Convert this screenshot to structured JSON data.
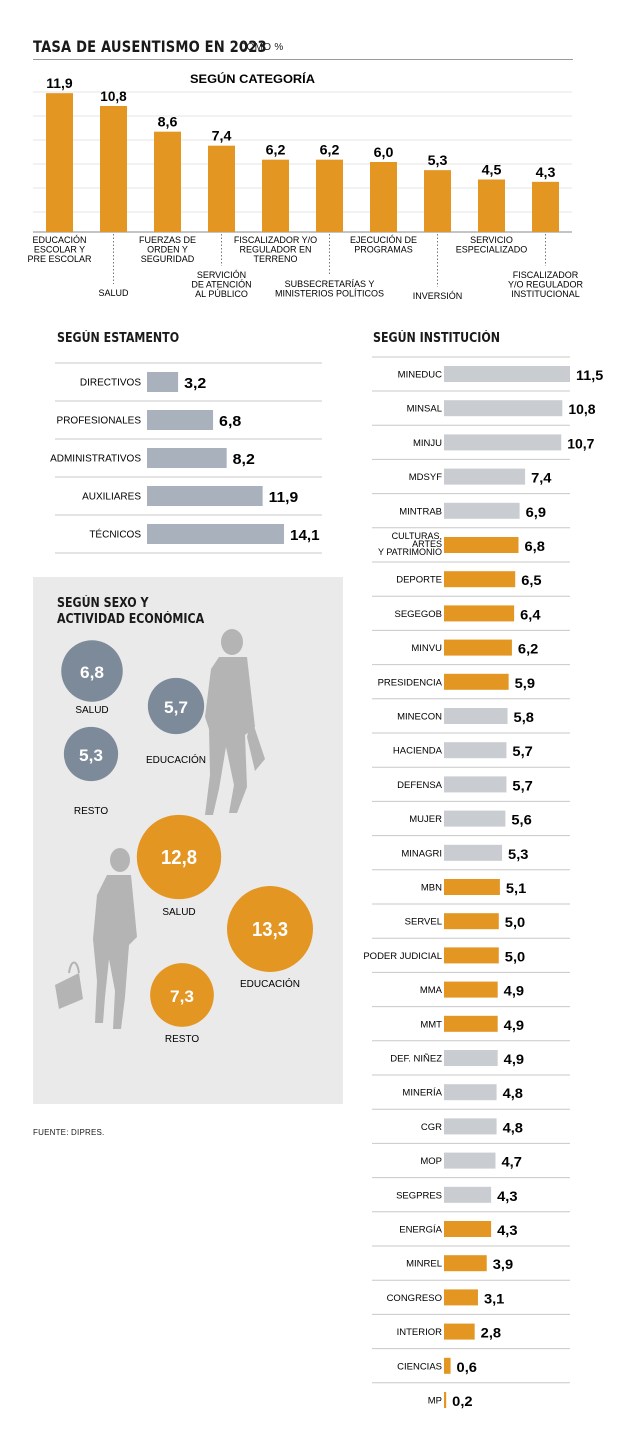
{
  "title": "TASA DE AUSENTISMO EN 2023",
  "title_unit": "COMO %",
  "source": "FUENTE: DIPRES.",
  "colors": {
    "orange": "#e39622",
    "gray": "#a9b2bc",
    "light_gray": "#c9ccd0",
    "dark_gray": "#7d8a99",
    "text": "#1a1a1a"
  },
  "chart_data": [
    {
      "type": "bar",
      "title": "SEGÚN CATEGORÍA",
      "categories": [
        [
          "EDUCACIÓN",
          "ESCOLAR Y",
          "PRE ESCOLAR"
        ],
        [
          "SALUD"
        ],
        [
          "FUERZAS DE",
          "ORDEN Y",
          "SEGURIDAD"
        ],
        [
          "SERVICIÓN",
          "DE ATENCIÓN",
          "AL PÚBLICO"
        ],
        [
          "FISCALIZADOR Y/O",
          "REGULADOR EN",
          "TERRENO"
        ],
        [
          "SUBSECRETARÍAS Y",
          "MINISTERIOS POLÍTICOS"
        ],
        [
          "EJECUCIÓN DE",
          "PROGRAMAS"
        ],
        [
          "INVERSIÓN"
        ],
        [
          "SERVICIO",
          "ESPECIALIZADO"
        ],
        [
          "FISCALIZADOR",
          "Y/O REGULADOR",
          "INSTITUCIONAL"
        ]
      ],
      "values": [
        11.9,
        10.8,
        8.6,
        7.4,
        6.2,
        6.2,
        6.0,
        5.3,
        4.5,
        4.3
      ],
      "value_labels": [
        "11,9",
        "10,8",
        "8,6",
        "7,4",
        "6,2",
        "6,2",
        "6,0",
        "5,3",
        "4,5",
        "4,3"
      ],
      "ylim": [
        0,
        12
      ]
    },
    {
      "type": "bar",
      "orientation": "horizontal",
      "title": "SEGÚN ESTAMENTO",
      "categories": [
        "DIRECTIVOS",
        "PROFESIONALES",
        "ADMINISTRATIVOS",
        "AUXILIARES",
        "TÉCNICOS"
      ],
      "values": [
        3.2,
        6.8,
        8.2,
        11.9,
        14.1
      ],
      "value_labels": [
        "3,2",
        "6,8",
        "8,2",
        "11,9",
        "14,1"
      ]
    },
    {
      "type": "bar",
      "orientation": "horizontal",
      "title": "SEGÚN INSTITUCIÓN",
      "categories": [
        "MINEDUC",
        "MINSAL",
        "MINJU",
        "MDSYF",
        "MINTRAB",
        "CULTURAS, ARTES Y PATRIMONIO",
        "DEPORTE",
        "SEGEGOB",
        "MINVU",
        "PRESIDENCIA",
        "MINECON",
        "HACIENDA",
        "DEFENSA",
        "MUJER",
        "MINAGRI",
        "MBN",
        "SERVEL",
        "PODER JUDICIAL",
        "MMA",
        "MMT",
        "DEF. NIÑEZ",
        "MINERÍA",
        "CGR",
        "MOP",
        "SEGPRES",
        "ENERGÍA",
        "MINREL",
        "CONGRESO",
        "INTERIOR",
        "CIENCIAS",
        "MP"
      ],
      "values": [
        11.5,
        10.8,
        10.7,
        7.4,
        6.9,
        6.8,
        6.5,
        6.4,
        6.2,
        5.9,
        5.8,
        5.7,
        5.7,
        5.6,
        5.3,
        5.1,
        5.0,
        5.0,
        4.9,
        4.9,
        4.9,
        4.8,
        4.8,
        4.7,
        4.3,
        4.3,
        3.9,
        3.1,
        2.8,
        0.6,
        0.2
      ],
      "value_labels": [
        "11,5",
        "10,8",
        "10,7",
        "7,4",
        "6,9",
        "6,8",
        "6,5",
        "6,4",
        "6,2",
        "5,9",
        "5,8",
        "5,7",
        "5,7",
        "5,6",
        "5,3",
        "5,1",
        "5,0",
        "5,0",
        "4,9",
        "4,9",
        "4,9",
        "4,8",
        "4,8",
        "4,7",
        "4,3",
        "4,3",
        "3,9",
        "3,1",
        "2,8",
        "0,6",
        "0,2"
      ],
      "highlight": [
        false,
        false,
        false,
        false,
        false,
        true,
        true,
        true,
        true,
        true,
        false,
        false,
        false,
        false,
        false,
        true,
        true,
        true,
        true,
        true,
        false,
        false,
        false,
        false,
        false,
        true,
        true,
        true,
        true,
        true,
        true
      ]
    },
    {
      "type": "bubble",
      "title": "SEGÚN SEXO Y ACTIVIDAD ECONÓMICA",
      "groups": [
        {
          "color": "dark_gray",
          "items": [
            {
              "label": "SALUD",
              "value": 6.8,
              "value_label": "6,8"
            },
            {
              "label": "EDUCACIÓN",
              "value": 5.7,
              "value_label": "5,7"
            },
            {
              "label": "RESTO",
              "value": 5.3,
              "value_label": "5,3"
            }
          ]
        },
        {
          "color": "orange",
          "items": [
            {
              "label": "SALUD",
              "value": 12.8,
              "value_label": "12,8"
            },
            {
              "label": "EDUCACIÓN",
              "value": 13.3,
              "value_label": "13,3"
            },
            {
              "label": "RESTO",
              "value": 7.3,
              "value_label": "7,3"
            }
          ]
        }
      ]
    }
  ]
}
